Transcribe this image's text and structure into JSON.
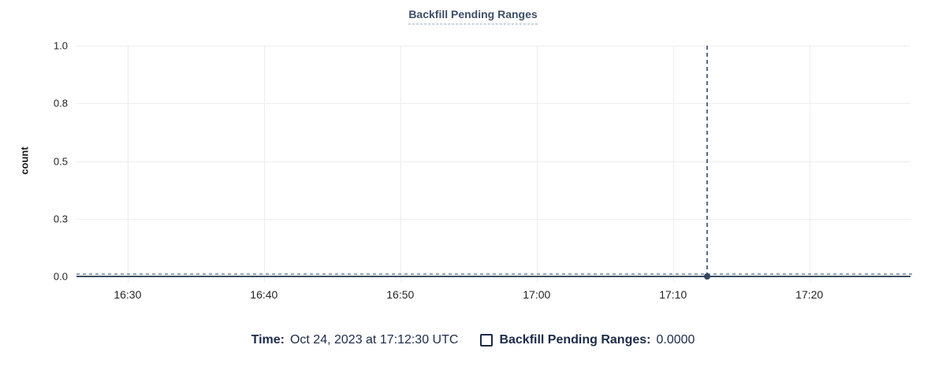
{
  "colors": {
    "background": "#ffffff",
    "title": "#3f4e68",
    "title_underline": "#9fb0c7",
    "legend_text": "#1c2b49",
    "grid": "#ededed",
    "series_dash": "#90a2b6",
    "axis_line": "#3e4d64",
    "crosshair": "#5a6c84",
    "tick_text": "#242424",
    "dot": "#36465f",
    "checkbox_border": "#1c2b49"
  },
  "chart": {
    "title": "Backfill Pending Ranges",
    "ylabel": "count",
    "y_domain": [
      0,
      1
    ],
    "y_ticks": [
      {
        "label": "1.0",
        "value": 1.0
      },
      {
        "label": "0.8",
        "value": 0.75
      },
      {
        "label": "0.5",
        "value": 0.5
      },
      {
        "label": "0.3",
        "value": 0.25
      },
      {
        "label": "0.0",
        "value": 0.0
      }
    ],
    "x_domain": [
      "16:26:15",
      "17:27:25"
    ],
    "x_ticks": [
      "16:30",
      "16:40",
      "16:50",
      "17:00",
      "17:10",
      "17:20"
    ],
    "crosshair_time": "17:12:30"
  },
  "legend": {
    "time_label": "Time:",
    "time_value": "Oct 24, 2023 at 17:12:30 UTC",
    "series_label": "Backfill Pending Ranges:",
    "series_value": "0.0000",
    "checkbox_checked": false
  },
  "chart_data": {
    "type": "line",
    "title": "Backfill Pending Ranges",
    "xlabel": "",
    "ylabel": "count",
    "x_ticks": [
      "16:30",
      "16:40",
      "16:50",
      "17:00",
      "17:10",
      "17:20"
    ],
    "x_range": [
      "16:26:15",
      "17:27:25"
    ],
    "y_tick_labels": [
      "0.0",
      "0.3",
      "0.5",
      "0.8",
      "1.0"
    ],
    "y_tick_values": [
      0,
      0.25,
      0.5,
      0.75,
      1.0
    ],
    "ylim": [
      0,
      1
    ],
    "grid": true,
    "legend_position": "bottom",
    "series": [
      {
        "name": "Backfill Pending Ranges",
        "style": "dashed",
        "x": [
          "16:26:15",
          "17:27:25"
        ],
        "y": [
          0,
          0
        ],
        "note": "constant 0 across the entire visible time window"
      }
    ],
    "hover": {
      "time": "Oct 24, 2023 at 17:12:30 UTC",
      "x": "17:12:30",
      "value": 0.0,
      "value_label": "0.0000"
    }
  }
}
